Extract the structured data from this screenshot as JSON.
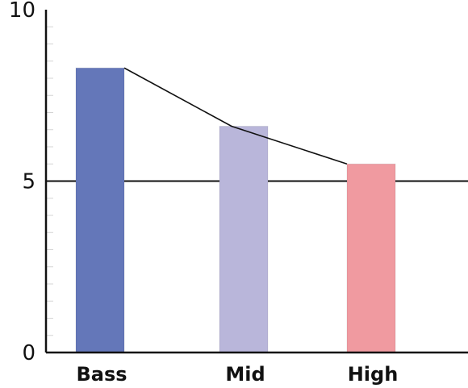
{
  "chart_data": {
    "type": "bar",
    "categories": [
      "Bass",
      "Mid",
      "High"
    ],
    "values": [
      8.3,
      6.6,
      5.5
    ],
    "bar_colors": [
      "#6477b9",
      "#b9b6da",
      "#f09aa0"
    ],
    "ylim": [
      0,
      10
    ],
    "y_ticks": [
      "0",
      "5",
      "10"
    ],
    "y_minor_step": 0.5,
    "reference_line": 5,
    "trend_line": true,
    "grid": false,
    "title": "",
    "xlabel": "",
    "ylabel": ""
  }
}
